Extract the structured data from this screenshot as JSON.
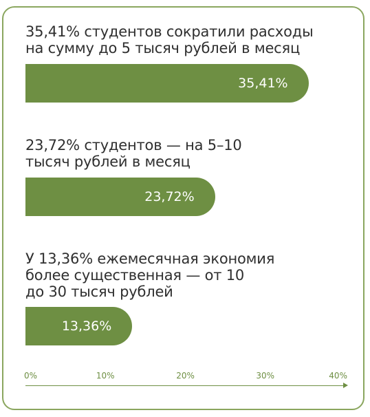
{
  "colors": {
    "bar": "#6e8f43",
    "border": "#8aa65e",
    "text": "#2f2f2f",
    "axis": "#6e8f43"
  },
  "chart_data": {
    "type": "bar",
    "orientation": "horizontal",
    "series": [
      {
        "values": [
          35.41,
          23.72,
          13.36
        ]
      }
    ],
    "categories": [
      "35,41% студентов сократили расходы\nна сумму до 5 тысяч рублей в месяц",
      "23,72% студентов — на 5–10\nтысяч рублей в месяц",
      "У 13,36% ежемесячная экономия\nболее существенная — от 10\nдо 30 тысяч рублей"
    ],
    "data_labels": [
      "35,41%",
      "23,72%",
      "13,36%"
    ],
    "xlim": [
      0,
      40
    ],
    "x_ticks": [
      "0%",
      "10%",
      "20%",
      "30%",
      "40%"
    ],
    "grid": false,
    "legend": "none"
  }
}
